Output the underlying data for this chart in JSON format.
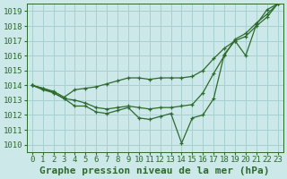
{
  "background_color": "#cce8e8",
  "grid_color": "#a8d0d0",
  "line_color": "#2d6a2d",
  "title": "Graphe pression niveau de la mer (hPa)",
  "xlabel_ticks": [
    0,
    1,
    2,
    3,
    4,
    5,
    6,
    7,
    8,
    9,
    10,
    11,
    12,
    13,
    14,
    15,
    16,
    17,
    18,
    19,
    20,
    21,
    22,
    23
  ],
  "ylim": [
    1009.5,
    1019.5
  ],
  "xlim": [
    -0.5,
    23.5
  ],
  "yticks": [
    1010,
    1011,
    1012,
    1013,
    1014,
    1015,
    1016,
    1017,
    1018,
    1019
  ],
  "series": {
    "line1": [
      1014.0,
      1013.7,
      1013.5,
      1013.1,
      1012.6,
      1012.6,
      1012.2,
      1012.1,
      1012.3,
      1012.5,
      1011.8,
      1011.7,
      1011.9,
      1012.1,
      1010.1,
      1011.8,
      1012.0,
      1013.1,
      1016.1,
      1017.0,
      1016.0,
      1018.1,
      1019.1,
      1019.5
    ],
    "line2": [
      1014.0,
      1013.8,
      1013.6,
      1013.2,
      1013.7,
      1013.8,
      1013.9,
      1014.1,
      1014.3,
      1014.5,
      1014.5,
      1014.4,
      1014.5,
      1014.5,
      1014.5,
      1014.6,
      1015.0,
      1015.8,
      1016.5,
      1017.0,
      1017.3,
      1018.0,
      1018.6,
      1019.5
    ],
    "line3": [
      1014.0,
      1013.8,
      1013.5,
      1013.1,
      1013.0,
      1012.8,
      1012.5,
      1012.4,
      1012.5,
      1012.6,
      1012.5,
      1012.4,
      1012.5,
      1012.5,
      1012.6,
      1012.7,
      1013.5,
      1014.8,
      1016.0,
      1017.1,
      1017.5,
      1018.2,
      1018.8,
      1019.5
    ]
  },
  "title_fontsize": 8,
  "tick_fontsize": 6.5
}
